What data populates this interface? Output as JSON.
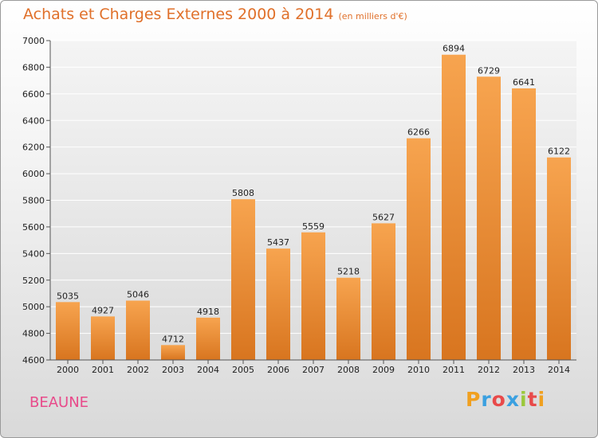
{
  "chart_data": {
    "type": "bar",
    "title": "Achats et Charges Externes 2000 à 2014",
    "subtitle": "(en milliers d'€)",
    "categories": [
      "2000",
      "2001",
      "2002",
      "2003",
      "2004",
      "2005",
      "2006",
      "2007",
      "2008",
      "2009",
      "2010",
      "2011",
      "2012",
      "2013",
      "2014"
    ],
    "values": [
      5035,
      4927,
      5046,
      4712,
      4918,
      5808,
      5437,
      5559,
      5218,
      5627,
      6266,
      6894,
      6729,
      6641,
      6122
    ],
    "ylim": [
      4600,
      7000
    ],
    "yticks": [
      4600,
      4800,
      5000,
      5200,
      5400,
      5600,
      5800,
      6000,
      6200,
      6400,
      6600,
      6800,
      7000
    ],
    "grid": true,
    "bar_color_top": "#f7a44f",
    "bar_color_bottom": "#d8751f"
  },
  "location_label": "BEAUNE",
  "logo": {
    "letters": [
      "P",
      "r",
      "o",
      "x",
      "i",
      "t",
      "i"
    ],
    "colors": [
      "#f0a020",
      "#3aa0e0",
      "#e84a4a",
      "#3aa0e0",
      "#9bc83c",
      "#e84a4a",
      "#f0a020"
    ]
  }
}
